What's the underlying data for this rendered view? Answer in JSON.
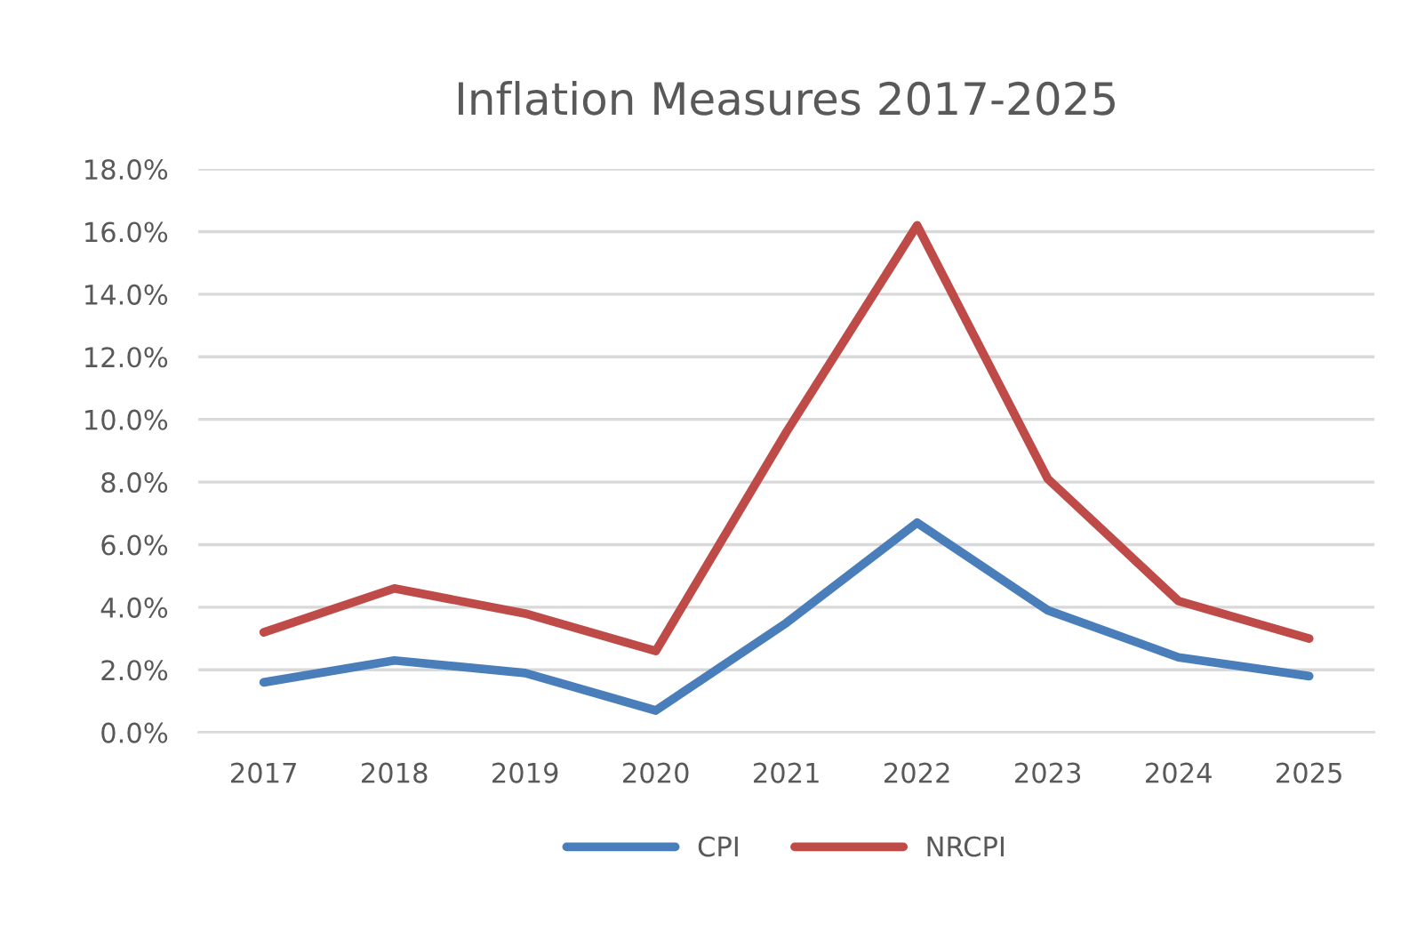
{
  "chart_data": {
    "type": "line",
    "title": "Inflation Measures 2017-2025",
    "categories": [
      "2017",
      "2018",
      "2019",
      "2020",
      "2021",
      "2022",
      "2023",
      "2024",
      "2025"
    ],
    "series": [
      {
        "name": "CPI",
        "color": "#4a7ebb",
        "values": [
          1.6,
          2.3,
          1.9,
          0.7,
          3.5,
          6.7,
          3.9,
          2.4,
          1.8
        ]
      },
      {
        "name": "NRCPI",
        "color": "#be4b48",
        "values": [
          3.2,
          4.6,
          3.8,
          2.6,
          9.6,
          16.2,
          8.1,
          4.2,
          3.0
        ]
      }
    ],
    "ylim": [
      0,
      18
    ],
    "yticks": [
      {
        "value": 0,
        "label": "0.0%"
      },
      {
        "value": 2,
        "label": "2.0%"
      },
      {
        "value": 4,
        "label": "4.0%"
      },
      {
        "value": 6,
        "label": "6.0%"
      },
      {
        "value": 8,
        "label": "8.0%"
      },
      {
        "value": 10,
        "label": "10.0%"
      },
      {
        "value": 12,
        "label": "12.0%"
      },
      {
        "value": 14,
        "label": "14.0%"
      },
      {
        "value": 16,
        "label": "16.0%"
      },
      {
        "value": 18,
        "label": "18.0%"
      }
    ],
    "grid": "y",
    "legend": "bottom",
    "marker": "none",
    "line_style": "solid"
  }
}
